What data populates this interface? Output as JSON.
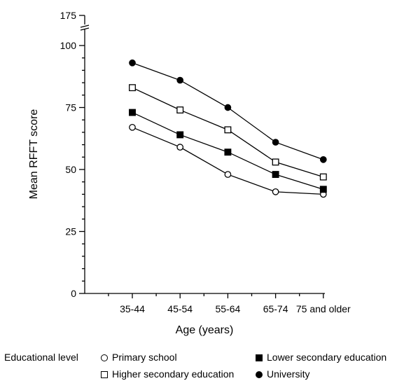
{
  "chart_data": {
    "type": "line",
    "title": "",
    "xlabel": "Age (years)",
    "ylabel": "Mean RFFT score",
    "categories": [
      "35-44",
      "45-54",
      "55-64",
      "65-74",
      "75 and older"
    ],
    "y_ticks": [
      0,
      25,
      50,
      75,
      100,
      175
    ],
    "y_axis_break": [
      100,
      175
    ],
    "ylim": [
      0,
      175
    ],
    "grid": false,
    "legend_title": "Educational level",
    "legend_position": "bottom",
    "series": [
      {
        "name": "Primary school",
        "marker": "open-circle",
        "values": [
          67,
          59,
          48,
          41,
          40
        ]
      },
      {
        "name": "Lower secondary education",
        "marker": "filled-square",
        "values": [
          73,
          64,
          57,
          48,
          42
        ]
      },
      {
        "name": "Higher secondary education",
        "marker": "open-square",
        "values": [
          83,
          74,
          66,
          53,
          47
        ]
      },
      {
        "name": "University",
        "marker": "filled-circle",
        "values": [
          93,
          86,
          75,
          61,
          54
        ]
      }
    ],
    "colors": {
      "line": "#000000",
      "marker_fill_open": "#ffffff",
      "marker_fill_solid": "#000000"
    }
  }
}
